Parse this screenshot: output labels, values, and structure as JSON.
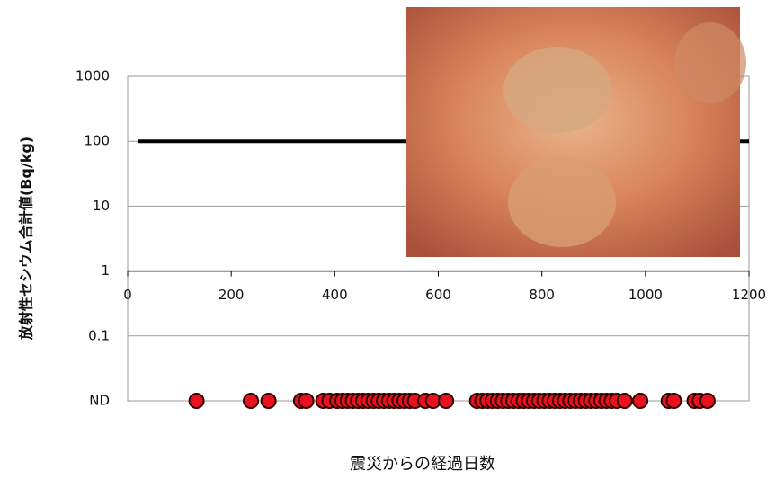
{
  "chart_data": {
    "type": "scatter",
    "y_label": "放射性セシウム合計値(Bq/kg)",
    "x_label": "震災からの経過日数",
    "log_y": true,
    "grid": true,
    "xlim": [
      0,
      1200
    ],
    "xticks": [
      0,
      200,
      400,
      600,
      800,
      1000,
      1200
    ],
    "ylim": [
      0.01,
      1000
    ],
    "yticks": [
      {
        "value": 0.01,
        "label": "ND"
      },
      0.1,
      1,
      10,
      100,
      1000
    ],
    "color": "#e8121e",
    "x": [
      133,
      238,
      272,
      335,
      345,
      378,
      390,
      405,
      415,
      425,
      435,
      445,
      455,
      465,
      475,
      485,
      495,
      505,
      515,
      525,
      535,
      545,
      555,
      575,
      590,
      615,
      675,
      685,
      695,
      705,
      715,
      725,
      735,
      745,
      755,
      765,
      775,
      785,
      795,
      805,
      815,
      825,
      835,
      845,
      855,
      865,
      875,
      885,
      895,
      905,
      915,
      925,
      935,
      945,
      960,
      990,
      1045,
      1055,
      1095,
      1105,
      1120
    ],
    "values": [
      0.01,
      0.01,
      0.01,
      0.01,
      0.01,
      0.01,
      0.01,
      0.01,
      0.01,
      0.01,
      0.01,
      0.01,
      0.01,
      0.01,
      0.01,
      0.01,
      0.01,
      0.01,
      0.01,
      0.01,
      0.01,
      0.01,
      0.01,
      0.01,
      0.01,
      0.01,
      0.01,
      0.01,
      0.01,
      0.01,
      0.01,
      0.01,
      0.01,
      0.01,
      0.01,
      0.01,
      0.01,
      0.01,
      0.01,
      0.01,
      0.01,
      0.01,
      0.01,
      0.01,
      0.01,
      0.01,
      0.01,
      0.01,
      0.01,
      0.01,
      0.01,
      0.01,
      0.01,
      0.01,
      0.01,
      0.01,
      0.01,
      0.01,
      0.01,
      0.01,
      0.01
    ],
    "reference_line": {
      "x": [
        20,
        1200
      ],
      "values": [
        100,
        100
      ],
      "color": "#000000"
    }
  }
}
